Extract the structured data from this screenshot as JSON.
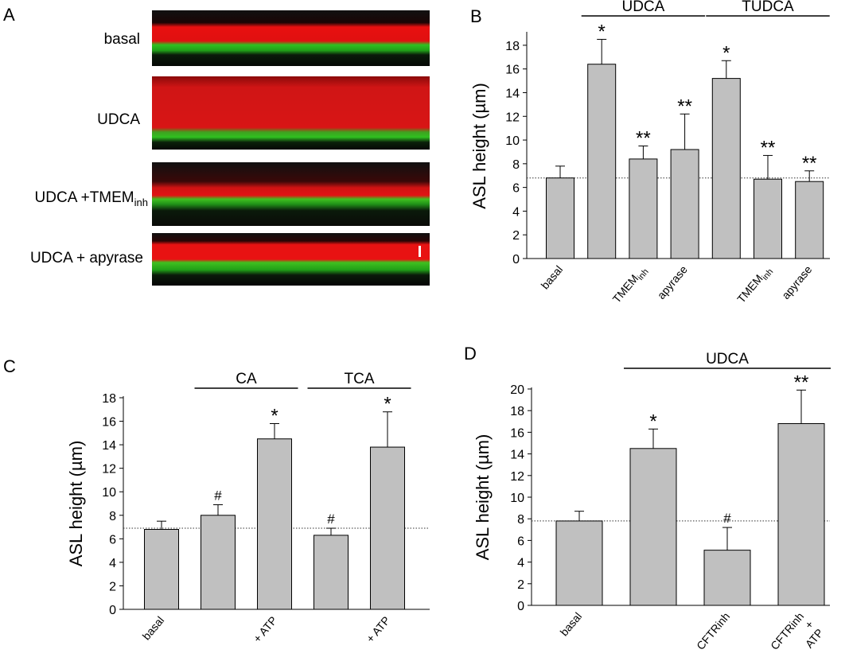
{
  "figure": {
    "panel_a": {
      "letter": "A",
      "images": [
        {
          "label": "basal"
        },
        {
          "label": "UDCA"
        },
        {
          "label_main": "UDCA +TMEM",
          "label_sub": "inh"
        },
        {
          "label": "UDCA + apyrase"
        }
      ]
    }
  },
  "chart_data": [
    {
      "panel": "B",
      "type": "bar",
      "ylabel": "ASL height (µm)",
      "ylim": [
        0,
        19
      ],
      "yticks": [
        0,
        2,
        4,
        6,
        8,
        10,
        12,
        14,
        16,
        18
      ],
      "reference_line": 6.8,
      "categories": [
        {
          "main": "basal",
          "sub": ""
        },
        {
          "main": "",
          "sub": ""
        },
        {
          "main": "TMEM",
          "sub": "inh"
        },
        {
          "main": "apyrase",
          "sub": ""
        },
        {
          "main": "",
          "sub": ""
        },
        {
          "main": "TMEM",
          "sub": "inh"
        },
        {
          "main": "apyrase",
          "sub": ""
        }
      ],
      "values": [
        6.8,
        16.4,
        8.4,
        9.2,
        15.2,
        6.7,
        6.5
      ],
      "errors": [
        1.0,
        2.1,
        1.1,
        3.0,
        1.5,
        2.0,
        0.9
      ],
      "markers": [
        "",
        "*",
        "**",
        "**",
        "*",
        "**",
        "**"
      ],
      "groups": [
        {
          "label": "UDCA",
          "from": 1,
          "to": 3
        },
        {
          "label": "TUDCA",
          "from": 4,
          "to": 6
        }
      ]
    },
    {
      "panel": "C",
      "type": "bar",
      "ylabel": "ASL height (µm)",
      "ylim": [
        0,
        18
      ],
      "yticks": [
        0,
        2,
        4,
        6,
        8,
        10,
        12,
        14,
        16,
        18
      ],
      "reference_line": 6.9,
      "categories": [
        {
          "main": "basal",
          "sub": ""
        },
        {
          "main": "",
          "sub": ""
        },
        {
          "main": "+ ATP",
          "sub": ""
        },
        {
          "main": "",
          "sub": ""
        },
        {
          "main": "+ ATP",
          "sub": ""
        }
      ],
      "values": [
        6.8,
        8.0,
        14.5,
        6.3,
        13.8
      ],
      "errors": [
        0.7,
        0.9,
        1.3,
        0.6,
        3.0
      ],
      "markers": [
        "",
        "#",
        "*",
        "#",
        "*"
      ],
      "groups": [
        {
          "label": "CA",
          "from": 1,
          "to": 2
        },
        {
          "label": "TCA",
          "from": 3,
          "to": 4
        }
      ]
    },
    {
      "panel": "D",
      "type": "bar",
      "ylabel": "ASL height (µm)",
      "ylim": [
        0,
        20
      ],
      "yticks": [
        0,
        2,
        4,
        6,
        8,
        10,
        12,
        14,
        16,
        18,
        20
      ],
      "reference_line": 7.8,
      "categories": [
        {
          "main": "basal",
          "sub": ""
        },
        {
          "main": "",
          "sub": ""
        },
        {
          "main": "CFTRinh",
          "sub": ""
        },
        {
          "main": "CFTRinh\n+\nATP",
          "sub": ""
        }
      ],
      "values": [
        7.8,
        14.5,
        5.1,
        16.8
      ],
      "errors": [
        0.9,
        1.8,
        2.1,
        3.1
      ],
      "markers": [
        "",
        "*",
        "#",
        "**"
      ],
      "groups": [
        {
          "label": "UDCA",
          "from": 1,
          "to": 3
        }
      ]
    }
  ]
}
